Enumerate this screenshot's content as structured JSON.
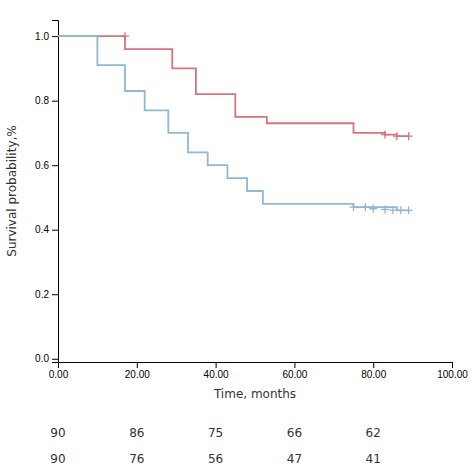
{
  "chart_data": {
    "type": "line",
    "xlabel": "Time, months",
    "ylabel": "Survival probability,%",
    "xlim": [
      0,
      100
    ],
    "ylim": [
      -0.01,
      1.05
    ],
    "xticks": [
      {
        "value": 0,
        "label": "0.00"
      },
      {
        "value": 20,
        "label": "20.00"
      },
      {
        "value": 40,
        "label": "40.00"
      },
      {
        "value": 60,
        "label": "60.00"
      },
      {
        "value": 80,
        "label": "80.00"
      },
      {
        "value": 100,
        "label": "100.00"
      }
    ],
    "yticks": [
      {
        "value": 0,
        "label": "0.0"
      },
      0.2,
      0.4,
      0.6,
      0.8,
      {
        "value": 1,
        "label": "1.0"
      }
    ],
    "series": [
      {
        "type": "step",
        "color": "#d9737a",
        "x": [
          0,
          17,
          17,
          29,
          29,
          35,
          35,
          45,
          45,
          53,
          53,
          75,
          75,
          83,
          83,
          86,
          86,
          89
        ],
        "values": [
          1.0,
          1.0,
          0.96,
          0.96,
          0.9,
          0.9,
          0.82,
          0.82,
          0.75,
          0.75,
          0.73,
          0.73,
          0.7,
          0.7,
          0.695,
          0.695,
          0.69,
          0.69
        ]
      },
      {
        "type": "step",
        "color": "#8fb8d4",
        "x": [
          0,
          10,
          10,
          17,
          17,
          22,
          22,
          28,
          28,
          33,
          33,
          38,
          38,
          43,
          43,
          48,
          48,
          52,
          52,
          75,
          75,
          86,
          86,
          89
        ],
        "values": [
          1.0,
          1.0,
          0.91,
          0.91,
          0.83,
          0.83,
          0.77,
          0.77,
          0.7,
          0.7,
          0.64,
          0.64,
          0.6,
          0.6,
          0.56,
          0.56,
          0.52,
          0.52,
          0.48,
          0.48,
          0.47,
          0.47,
          0.46,
          0.46
        ]
      },
      {
        "type": "scatter",
        "marker": "+",
        "color": "#d9737a",
        "x": [
          17,
          83,
          86,
          89
        ],
        "values": [
          1.0,
          0.695,
          0.69,
          0.69
        ]
      },
      {
        "type": "scatter",
        "marker": "+",
        "color": "#8fb8d4",
        "x": [
          75,
          78,
          80,
          83,
          85,
          87,
          89
        ],
        "values": [
          0.47,
          0.47,
          0.465,
          0.463,
          0.461,
          0.46,
          0.46
        ]
      }
    ],
    "at_risk": {
      "x": [
        0,
        20,
        40,
        60,
        80
      ],
      "rows": [
        [
          90,
          86,
          75,
          66,
          62
        ],
        [
          90,
          76,
          56,
          47,
          41
        ]
      ]
    }
  }
}
